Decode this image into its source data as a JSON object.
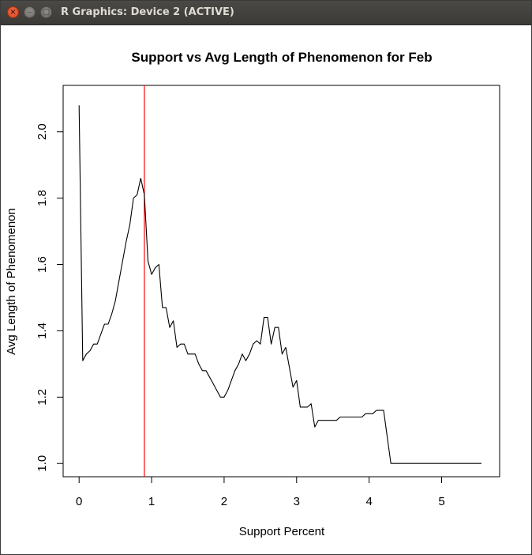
{
  "window": {
    "title": "R Graphics: Device 2 (ACTIVE)",
    "close_symbol": "×",
    "minimize_symbol": "–",
    "maximize_symbol": "□"
  },
  "chart_data": {
    "type": "line",
    "title": "Support vs Avg Length of Phenomenon for Feb",
    "xlabel": "Support Percent",
    "ylabel": "Avg Length of Phenomenon",
    "xlim": [
      -0.22,
      5.8
    ],
    "ylim": [
      0.96,
      2.14
    ],
    "x_ticks": [
      0,
      1,
      2,
      3,
      4,
      5
    ],
    "y_ticks": [
      1.0,
      1.2,
      1.4,
      1.6,
      1.8,
      2.0
    ],
    "x_tick_labels": [
      "0",
      "1",
      "2",
      "3",
      "4",
      "5"
    ],
    "y_tick_labels": [
      "1.0",
      "1.2",
      "1.4",
      "1.6",
      "1.8",
      "2.0"
    ],
    "grid": false,
    "series": [
      {
        "color": "#000000",
        "x": [
          0.0,
          0.05,
          0.1,
          0.15,
          0.2,
          0.25,
          0.3,
          0.35,
          0.4,
          0.45,
          0.5,
          0.55,
          0.6,
          0.65,
          0.7,
          0.75,
          0.8,
          0.85,
          0.9,
          0.95,
          1.0,
          1.05,
          1.1,
          1.15,
          1.2,
          1.25,
          1.3,
          1.35,
          1.4,
          1.45,
          1.5,
          1.55,
          1.6,
          1.65,
          1.7,
          1.75,
          1.8,
          1.85,
          1.9,
          1.95,
          2.0,
          2.05,
          2.1,
          2.15,
          2.2,
          2.25,
          2.3,
          2.35,
          2.4,
          2.45,
          2.5,
          2.55,
          2.6,
          2.65,
          2.7,
          2.75,
          2.8,
          2.85,
          2.9,
          2.95,
          3.0,
          3.05,
          3.1,
          3.15,
          3.2,
          3.25,
          3.3,
          3.35,
          3.4,
          3.45,
          3.5,
          3.55,
          3.6,
          3.65,
          3.7,
          3.75,
          3.8,
          3.85,
          3.9,
          3.95,
          4.0,
          4.05,
          4.1,
          4.15,
          4.2,
          4.25,
          4.3,
          4.35,
          4.4,
          4.5,
          4.6,
          4.8,
          5.0,
          5.2,
          5.4,
          5.55
        ],
        "values": [
          2.08,
          1.31,
          1.33,
          1.34,
          1.36,
          1.36,
          1.39,
          1.42,
          1.42,
          1.45,
          1.49,
          1.55,
          1.61,
          1.67,
          1.72,
          1.8,
          1.81,
          1.86,
          1.81,
          1.61,
          1.57,
          1.59,
          1.6,
          1.47,
          1.47,
          1.41,
          1.43,
          1.35,
          1.36,
          1.36,
          1.33,
          1.33,
          1.33,
          1.3,
          1.28,
          1.28,
          1.26,
          1.24,
          1.22,
          1.2,
          1.2,
          1.22,
          1.25,
          1.28,
          1.3,
          1.33,
          1.31,
          1.33,
          1.36,
          1.37,
          1.36,
          1.44,
          1.44,
          1.36,
          1.41,
          1.41,
          1.33,
          1.35,
          1.29,
          1.23,
          1.25,
          1.17,
          1.17,
          1.17,
          1.18,
          1.11,
          1.13,
          1.13,
          1.13,
          1.13,
          1.13,
          1.13,
          1.14,
          1.14,
          1.14,
          1.14,
          1.14,
          1.14,
          1.14,
          1.15,
          1.15,
          1.15,
          1.16,
          1.16,
          1.16,
          1.08,
          1.0,
          1.0,
          1.0,
          1.0,
          1.0,
          1.0,
          1.0,
          1.0,
          1.0,
          1.0
        ]
      }
    ],
    "reference_line": {
      "orientation": "vertical",
      "x": 0.9,
      "color": "#ff0000"
    }
  }
}
